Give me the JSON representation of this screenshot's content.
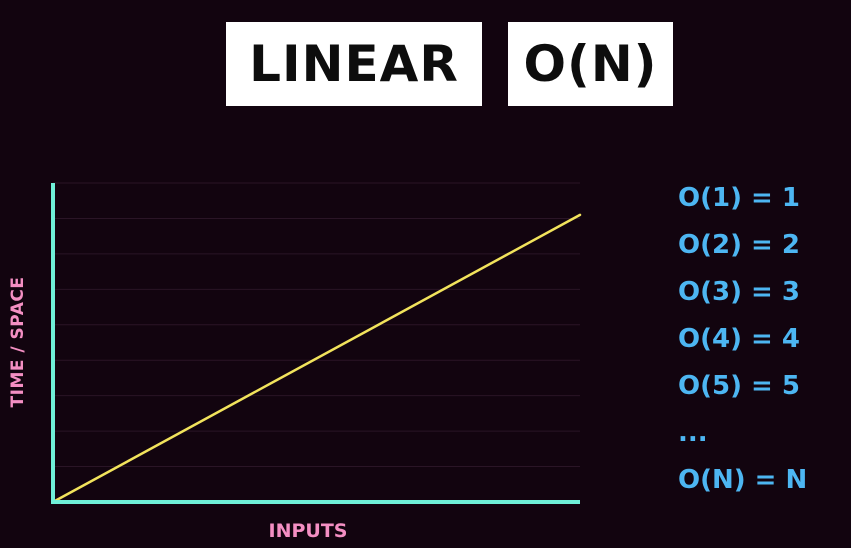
{
  "header": {
    "title_left": "LINEAR",
    "title_right": "O(N)"
  },
  "notations": [
    "O(1) = 1",
    "O(2) = 2",
    "O(3) = 3",
    "O(4) = 4",
    "O(5) = 5",
    "...",
    "O(N) = N"
  ],
  "colors": {
    "background": "#12040f",
    "axis": "#6ff0d8",
    "line": "#f2e35c",
    "label": "#f48fc3",
    "notation": "#4db6f2",
    "grid": "#2a1526"
  },
  "chart_data": {
    "type": "line",
    "xlabel": "INPUTS",
    "ylabel": "TIME / SPACE",
    "x": [
      0,
      1
    ],
    "series": [
      {
        "values": [
          0,
          0.9
        ]
      }
    ],
    "xlim": [
      0,
      1
    ],
    "ylim": [
      0,
      1
    ],
    "grid": true
  }
}
